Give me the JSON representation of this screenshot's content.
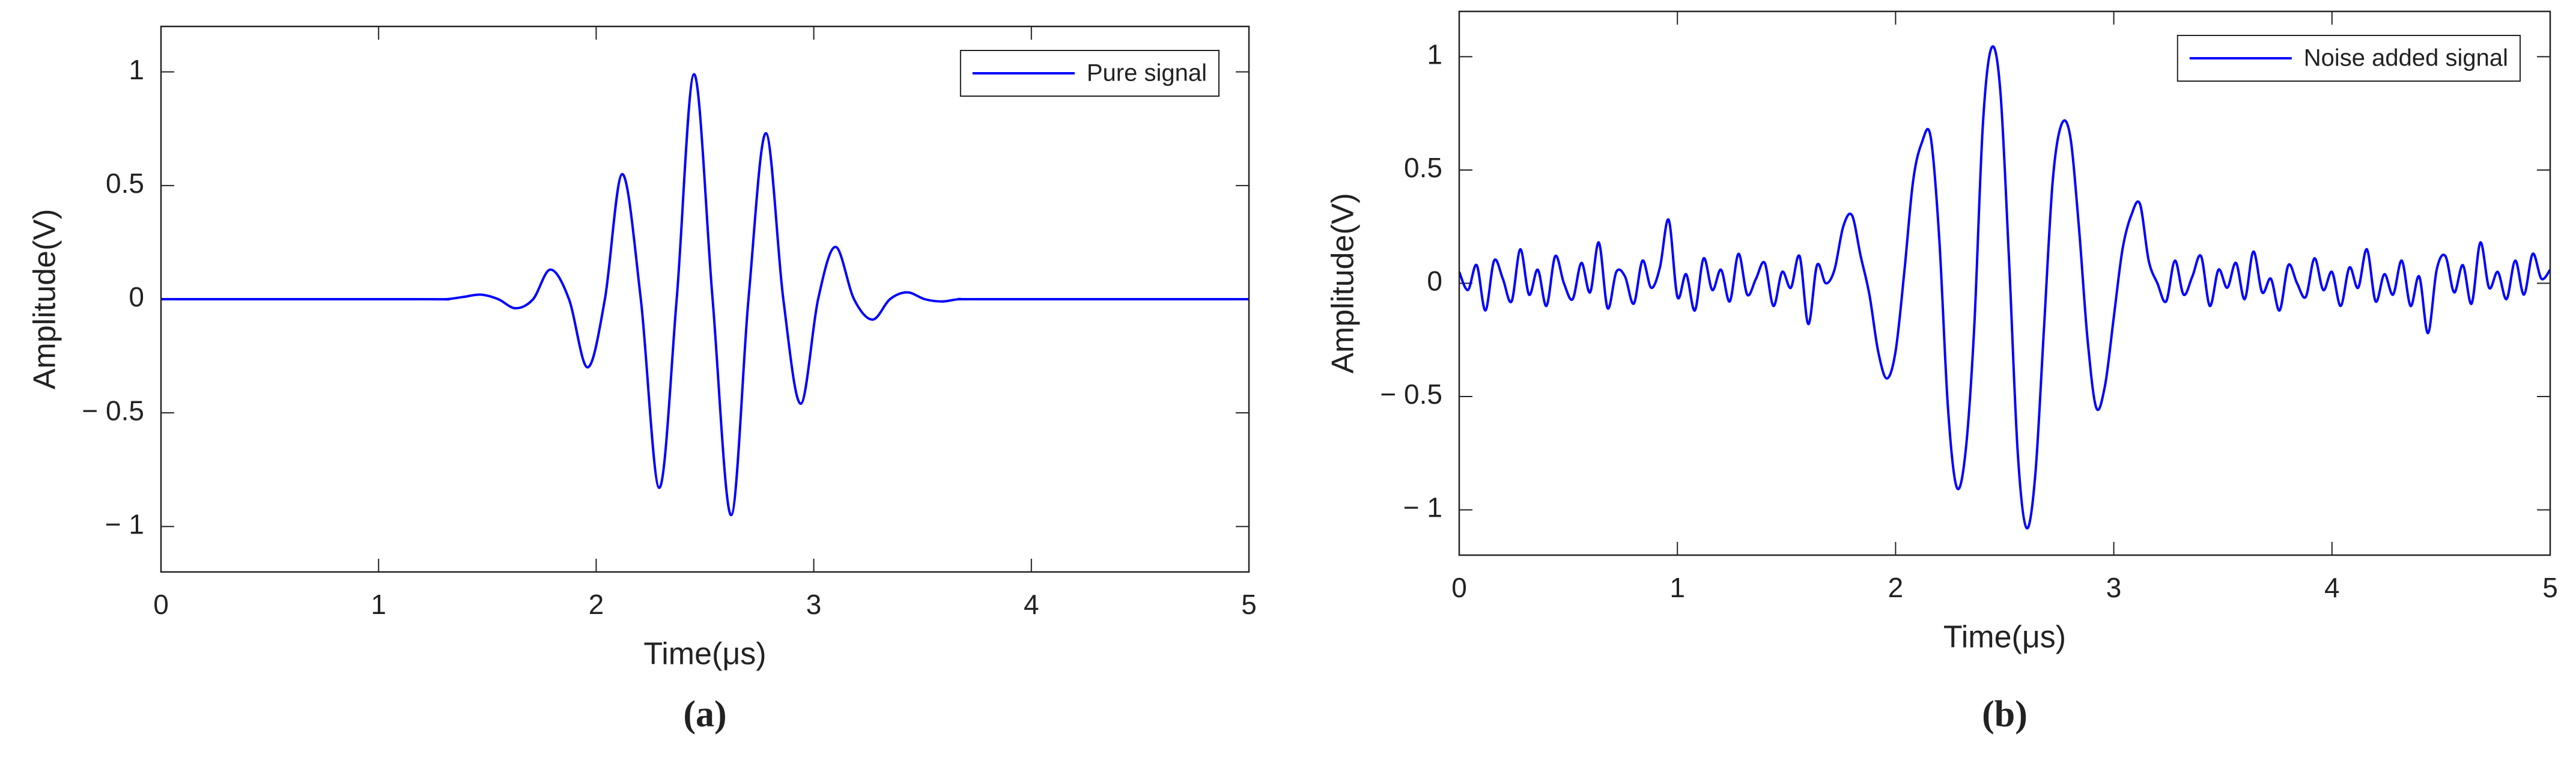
{
  "chart_data": [
    {
      "type": "line",
      "caption": "(a)",
      "xlabel": "Time(μs)",
      "ylabel": "Amplitude(V)",
      "x": [
        0,
        1.2,
        1.31,
        1.39,
        1.47,
        1.55,
        1.63,
        1.71,
        1.79,
        1.875,
        1.96,
        2.04,
        2.12,
        2.205,
        2.29,
        2.37,
        2.45,
        2.535,
        2.62,
        2.7,
        2.78,
        2.86,
        2.94,
        3.02,
        3.1,
        3.185,
        3.27,
        3.35,
        3.43,
        3.51,
        3.59,
        3.67,
        3.8,
        5
      ],
      "series": [
        {
          "name": "Pure signal",
          "color": "#0000ff",
          "values": [
            0,
            0,
            0,
            0.01,
            0.02,
            0,
            -0.04,
            0,
            0.13,
            0,
            -0.3,
            0,
            0.55,
            0,
            -0.83,
            0,
            0.99,
            0,
            -0.95,
            0,
            0.73,
            0,
            -0.46,
            0,
            0.23,
            0,
            -0.09,
            0,
            0.03,
            0,
            -0.01,
            0,
            0,
            0
          ]
        }
      ],
      "xlim": [
        0,
        5
      ],
      "xticks": [
        0,
        1,
        2,
        3,
        4,
        5
      ],
      "ylim": [
        -1.2,
        1.2
      ],
      "yticks": [
        {
          "value": -1,
          "label": "− 1"
        },
        {
          "value": -0.5,
          "label": "− 0.5"
        },
        0,
        0.5,
        1
      ],
      "grid": false,
      "legend": "upper right"
    },
    {
      "type": "line",
      "caption": "(b)",
      "xlabel": "Time(μs)",
      "ylabel": "Amplitude(V)",
      "x": [
        0,
        0.04,
        0.08,
        0.12,
        0.16,
        0.2,
        0.24,
        0.28,
        0.32,
        0.36,
        0.4,
        0.44,
        0.48,
        0.52,
        0.56,
        0.6,
        0.64,
        0.68,
        0.72,
        0.76,
        0.8,
        0.84,
        0.88,
        0.92,
        0.96,
        1.0,
        1.04,
        1.08,
        1.12,
        1.16,
        1.2,
        1.24,
        1.28,
        1.32,
        1.36,
        1.4,
        1.44,
        1.48,
        1.52,
        1.56,
        1.6,
        1.64,
        1.68,
        1.72,
        1.76,
        1.8,
        1.84,
        1.88,
        1.92,
        1.96,
        2.0,
        2.04,
        2.08,
        2.12,
        2.16,
        2.2,
        2.24,
        2.28,
        2.32,
        2.36,
        2.4,
        2.44,
        2.48,
        2.52,
        2.56,
        2.6,
        2.64,
        2.68,
        2.72,
        2.76,
        2.8,
        2.84,
        2.88,
        2.92,
        2.96,
        3.0,
        3.04,
        3.08,
        3.12,
        3.16,
        3.2,
        3.24,
        3.28,
        3.32,
        3.36,
        3.4,
        3.44,
        3.48,
        3.52,
        3.56,
        3.6,
        3.64,
        3.68,
        3.72,
        3.76,
        3.8,
        3.84,
        3.88,
        3.92,
        3.96,
        4.0,
        4.04,
        4.08,
        4.12,
        4.16,
        4.2,
        4.24,
        4.28,
        4.32,
        4.36,
        4.4,
        4.44,
        4.48,
        4.52,
        4.56,
        4.6,
        4.64,
        4.68,
        4.72,
        4.76,
        4.8,
        4.84,
        4.88,
        4.92,
        4.96,
        5.0
      ],
      "series": [
        {
          "name": "Noise added signal",
          "color": "#0000ff",
          "values": [
            0.05,
            -0.03,
            0.08,
            -0.12,
            0.1,
            0.02,
            -0.08,
            0.15,
            -0.05,
            0.06,
            -0.1,
            0.12,
            0.0,
            -0.07,
            0.09,
            -0.04,
            0.18,
            -0.11,
            0.05,
            0.03,
            -0.09,
            0.1,
            -0.02,
            0.07,
            0.28,
            -0.06,
            0.04,
            -0.12,
            0.11,
            -0.03,
            0.06,
            -0.08,
            0.13,
            -0.05,
            0.02,
            0.09,
            -0.1,
            0.05,
            -0.02,
            0.12,
            -0.18,
            0.08,
            0.0,
            0.06,
            0.25,
            0.3,
            0.12,
            -0.05,
            -0.3,
            -0.42,
            -0.3,
            0.05,
            0.45,
            0.62,
            0.65,
            0.2,
            -0.55,
            -0.9,
            -0.75,
            -0.2,
            0.7,
            1.04,
            0.85,
            0.1,
            -0.75,
            -1.08,
            -0.85,
            -0.2,
            0.45,
            0.7,
            0.65,
            0.25,
            -0.25,
            -0.55,
            -0.45,
            -0.15,
            0.15,
            0.3,
            0.35,
            0.1,
            0.0,
            -0.08,
            0.1,
            -0.05,
            0.03,
            0.12,
            -0.1,
            0.06,
            -0.02,
            0.09,
            -0.07,
            0.14,
            -0.04,
            0.02,
            -0.12,
            0.08,
            0.0,
            -0.06,
            0.11,
            -0.03,
            0.05,
            -0.1,
            0.07,
            -0.02,
            0.15,
            -0.08,
            0.04,
            -0.05,
            0.1,
            -0.1,
            0.03,
            -0.22,
            0.06,
            0.12,
            -0.04,
            0.08,
            -0.09,
            0.18,
            -0.02,
            0.05,
            -0.07,
            0.1,
            -0.05,
            0.13,
            0.02,
            0.06
          ]
        }
      ],
      "xlim": [
        0,
        5
      ],
      "xticks": [
        0,
        1,
        2,
        3,
        4,
        5
      ],
      "ylim": [
        -1.2,
        1.2
      ],
      "yticks": [
        {
          "value": -1,
          "label": "− 1"
        },
        {
          "value": -0.5,
          "label": "− 0.5"
        },
        0,
        0.5,
        1
      ],
      "grid": false,
      "legend": "upper right"
    }
  ]
}
